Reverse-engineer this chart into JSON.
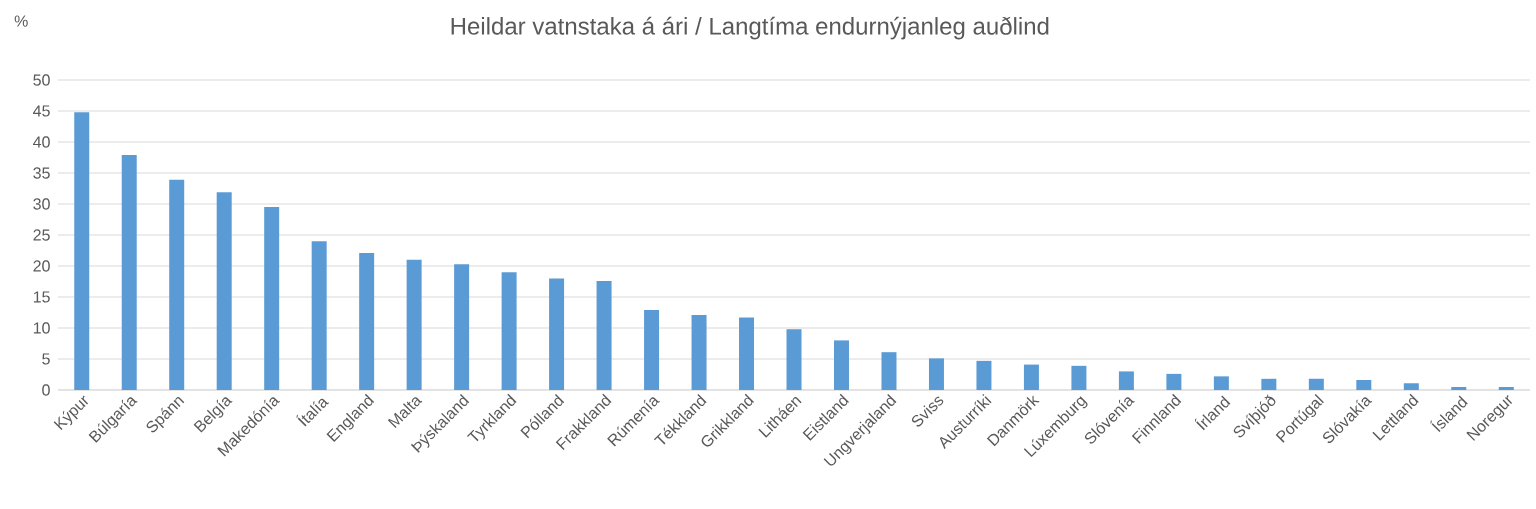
{
  "chart_data": {
    "type": "bar",
    "title": "Heildar vatnstaka á ári / Langtíma endurnýjanleg  auðlind",
    "ylabel": "%",
    "categories": [
      "Kýpur",
      "Búlgaría",
      "Spánn",
      "Belgía",
      "Makedónía",
      "Ítalía",
      "England",
      "Malta",
      "Þýskaland",
      "Tyrkland",
      "Pólland",
      "Frakkland",
      "Rúmenía",
      "Tékkland",
      "Grikkland",
      "Litháen",
      "Eistland",
      "Ungverjaland",
      "Sviss",
      "Austurríki",
      "Danmörk",
      "Lúxemburg",
      "Slóvenía",
      "Finnland",
      "Írland",
      "Svíþjóð",
      "Portúgal",
      "Slóvakía",
      "Lettland",
      "Ísland",
      "Noregur"
    ],
    "values": [
      44.8,
      37.9,
      33.9,
      31.9,
      29.5,
      24.0,
      22.1,
      21.0,
      20.3,
      19.0,
      18.0,
      17.6,
      12.9,
      12.1,
      11.7,
      9.8,
      8.0,
      6.1,
      5.1,
      4.7,
      4.1,
      3.9,
      3.0,
      2.6,
      2.2,
      1.8,
      1.8,
      1.6,
      1.1,
      0.5,
      0.5
    ],
    "color": "#5b9bd5",
    "ylim": [
      0,
      50
    ],
    "yticks": [
      0,
      5,
      10,
      15,
      20,
      25,
      30,
      35,
      40,
      45,
      50
    ],
    "grid": "y"
  }
}
